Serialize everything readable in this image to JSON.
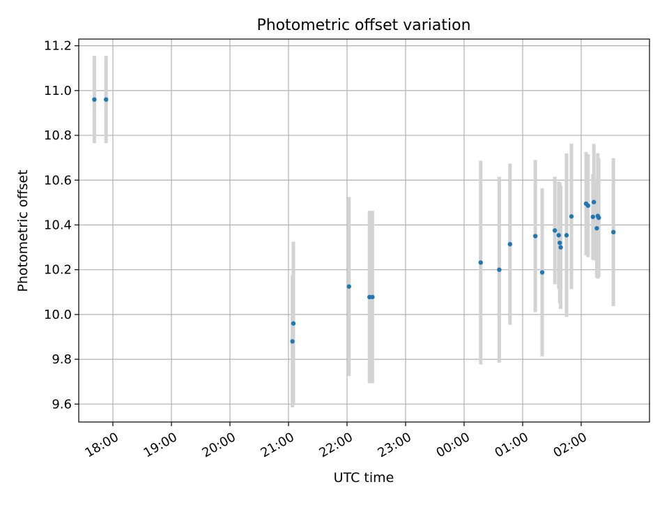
{
  "chart_data": {
    "type": "scatter",
    "title": "Photometric offset variation",
    "xlabel": "UTC time",
    "ylabel": "Photometric offset",
    "x_is_time": true,
    "xlim": [
      "17:25",
      "27:10"
    ],
    "ylim": [
      9.52,
      11.23
    ],
    "xticks": [
      "18:00",
      "19:00",
      "20:00",
      "21:00",
      "22:00",
      "23:00",
      "00:00",
      "01:00",
      "02:00"
    ],
    "yticks": [
      "9.6",
      "9.8",
      "10.0",
      "10.2",
      "10.4",
      "10.6",
      "10.8",
      "11.0",
      "11.2"
    ],
    "grid": true,
    "colors": {
      "points": "#1f77b4",
      "errorbars": "#d3d3d3",
      "grid": "#b0b0b0"
    },
    "series": [
      {
        "points": [
          {
            "x": "17:41",
            "y": 10.96,
            "yerr": 0.195
          },
          {
            "x": "17:53",
            "y": 10.96,
            "yerr": 0.195
          },
          {
            "x": "21:04",
            "y": 9.88,
            "yerr": 0.295
          },
          {
            "x": "21:05",
            "y": 9.96,
            "yerr": 0.365
          },
          {
            "x": "22:02",
            "y": 10.125,
            "yerr": 0.4
          },
          {
            "x": "22:23",
            "y": 10.078,
            "yerr": 0.385
          },
          {
            "x": "22:26",
            "y": 10.078,
            "yerr": 0.385
          },
          {
            "x": "00:17",
            "y": 10.232,
            "yerr": 0.455
          },
          {
            "x": "00:36",
            "y": 10.2,
            "yerr": 0.415
          },
          {
            "x": "00:47",
            "y": 10.314,
            "yerr": 0.36
          },
          {
            "x": "01:13",
            "y": 10.35,
            "yerr": 0.34
          },
          {
            "x": "01:20",
            "y": 10.188,
            "yerr": 0.375
          },
          {
            "x": "01:33",
            "y": 10.375,
            "yerr": 0.24
          },
          {
            "x": "01:37",
            "y": 10.354,
            "yerr": 0.24
          },
          {
            "x": "01:38",
            "y": 10.32,
            "yerr": 0.27
          },
          {
            "x": "01:39",
            "y": 10.3,
            "yerr": 0.275
          },
          {
            "x": "01:45",
            "y": 10.354,
            "yerr": 0.365
          },
          {
            "x": "01:50",
            "y": 10.438,
            "yerr": 0.325
          },
          {
            "x": "02:05",
            "y": 10.495,
            "yerr": 0.23
          },
          {
            "x": "02:07",
            "y": 10.486,
            "yerr": 0.23
          },
          {
            "x": "02:12",
            "y": 10.436,
            "yerr": 0.19
          },
          {
            "x": "02:13",
            "y": 10.502,
            "yerr": 0.26
          },
          {
            "x": "02:16",
            "y": 10.385,
            "yerr": 0.22
          },
          {
            "x": "02:17",
            "y": 10.44,
            "yerr": 0.28
          },
          {
            "x": "02:18",
            "y": 10.432,
            "yerr": 0.265
          },
          {
            "x": "02:33",
            "y": 10.368,
            "yerr": 0.33
          }
        ]
      }
    ]
  }
}
